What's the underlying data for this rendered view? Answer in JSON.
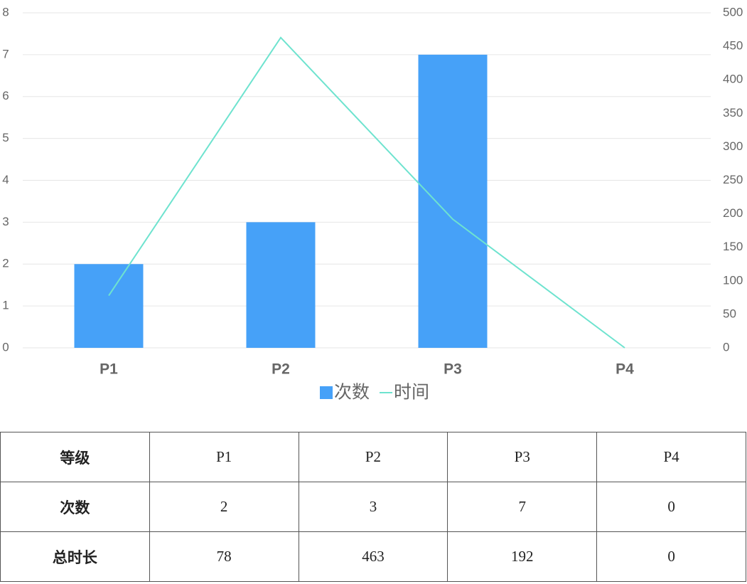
{
  "chart_data": {
    "type": "bar",
    "categories": [
      "P1",
      "P2",
      "P3",
      "P4"
    ],
    "series": [
      {
        "name": "次数",
        "color": "#46a1f8",
        "type": "bar",
        "values": [
          2,
          3,
          7,
          0
        ]
      },
      {
        "name": "时间",
        "color": "#6ee3cf",
        "type": "line",
        "axis": "y2",
        "values": [
          78,
          463,
          192,
          0
        ]
      }
    ],
    "ylim": [
      0,
      8
    ],
    "yticks": [
      0,
      1,
      2,
      3,
      4,
      5,
      6,
      7,
      8
    ],
    "y2lim": [
      0,
      500
    ],
    "y2ticks": [
      0,
      50,
      100,
      150,
      200,
      250,
      300,
      350,
      400,
      450,
      500
    ],
    "grid": true,
    "legend": "bottom"
  },
  "table": {
    "rows": [
      [
        "等级",
        "P1",
        "P2",
        "P3",
        "P4"
      ],
      [
        "次数",
        2,
        3,
        7,
        0
      ],
      [
        "总时长",
        78,
        463,
        192,
        0
      ]
    ]
  }
}
